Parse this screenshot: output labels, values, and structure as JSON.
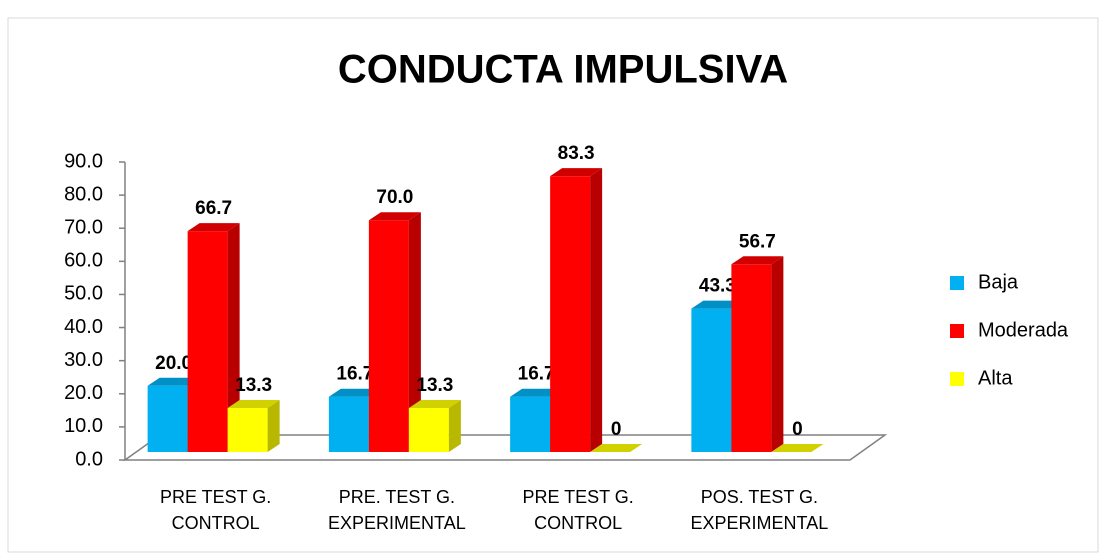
{
  "chart_data": {
    "type": "bar3d",
    "title": "CONDUCTA IMPULSIVA",
    "categories": [
      "PRE TEST G.\nCONTROL",
      "PRE. TEST G.\nEXPERIMENTAL",
      "PRE TEST G.\nCONTROL",
      "POS. TEST G.\nEXPERIMENTAL"
    ],
    "series": [
      {
        "name": "Baja",
        "color": "#00b0f0",
        "values": [
          20.0,
          16.7,
          16.7,
          43.3
        ],
        "value_labels": [
          "20.0",
          "16.7",
          "16.7",
          "43.3"
        ]
      },
      {
        "name": "Moderada",
        "color": "#ff0000",
        "values": [
          66.7,
          70.0,
          83.3,
          56.7
        ],
        "value_labels": [
          "66.7",
          "70.0",
          "83.3",
          "56.7"
        ]
      },
      {
        "name": "Alta",
        "color": "#ffff00",
        "values": [
          13.3,
          13.3,
          0,
          0
        ],
        "value_labels": [
          "13.3",
          "13.3",
          "0",
          "0"
        ]
      }
    ],
    "ylim": [
      0,
      90
    ],
    "yticks": [
      {
        "value": 0,
        "label": "0.0"
      },
      {
        "value": 10,
        "label": "10.0"
      },
      {
        "value": 20,
        "label": "20.0"
      },
      {
        "value": 30,
        "label": "30.0"
      },
      {
        "value": 40,
        "label": "40.0"
      },
      {
        "value": 50,
        "label": "50.0"
      },
      {
        "value": 60,
        "label": "60.0"
      },
      {
        "value": 70,
        "label": "70.0"
      },
      {
        "value": 80,
        "label": "80.0"
      },
      {
        "value": 90,
        "label": "90.0"
      }
    ],
    "legend": "right",
    "grid": false
  }
}
